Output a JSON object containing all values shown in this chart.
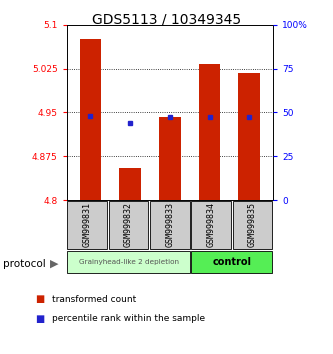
{
  "title": "GDS5113 / 10349345",
  "samples": [
    "GSM999831",
    "GSM999832",
    "GSM999833",
    "GSM999834",
    "GSM999835"
  ],
  "bar_bottom": 4.8,
  "bar_tops": [
    5.075,
    4.855,
    4.942,
    5.032,
    5.018
  ],
  "blue_y": [
    4.943,
    4.932,
    4.942,
    4.942,
    4.942
  ],
  "ylim_left": [
    4.8,
    5.1
  ],
  "ylim_right": [
    0,
    100
  ],
  "yticks_left": [
    4.8,
    4.875,
    4.95,
    5.025,
    5.1
  ],
  "yticks_right": [
    0,
    25,
    50,
    75,
    100
  ],
  "ytick_labels_left": [
    "4.8",
    "4.875",
    "4.95",
    "5.025",
    "5.1"
  ],
  "ytick_labels_right": [
    "0",
    "25",
    "50",
    "75",
    "100%"
  ],
  "bar_color": "#cc2200",
  "blue_color": "#2222cc",
  "group1_samples": [
    0,
    1,
    2
  ],
  "group2_samples": [
    3,
    4
  ],
  "group1_label": "Grainyhead-like 2 depletion",
  "group2_label": "control",
  "group1_color": "#ccffcc",
  "group2_color": "#55ee55",
  "protocol_label": "protocol",
  "legend_red": "transformed count",
  "legend_blue": "percentile rank within the sample",
  "bg_color": "#ffffff",
  "title_fontsize": 10,
  "bar_width": 0.55
}
